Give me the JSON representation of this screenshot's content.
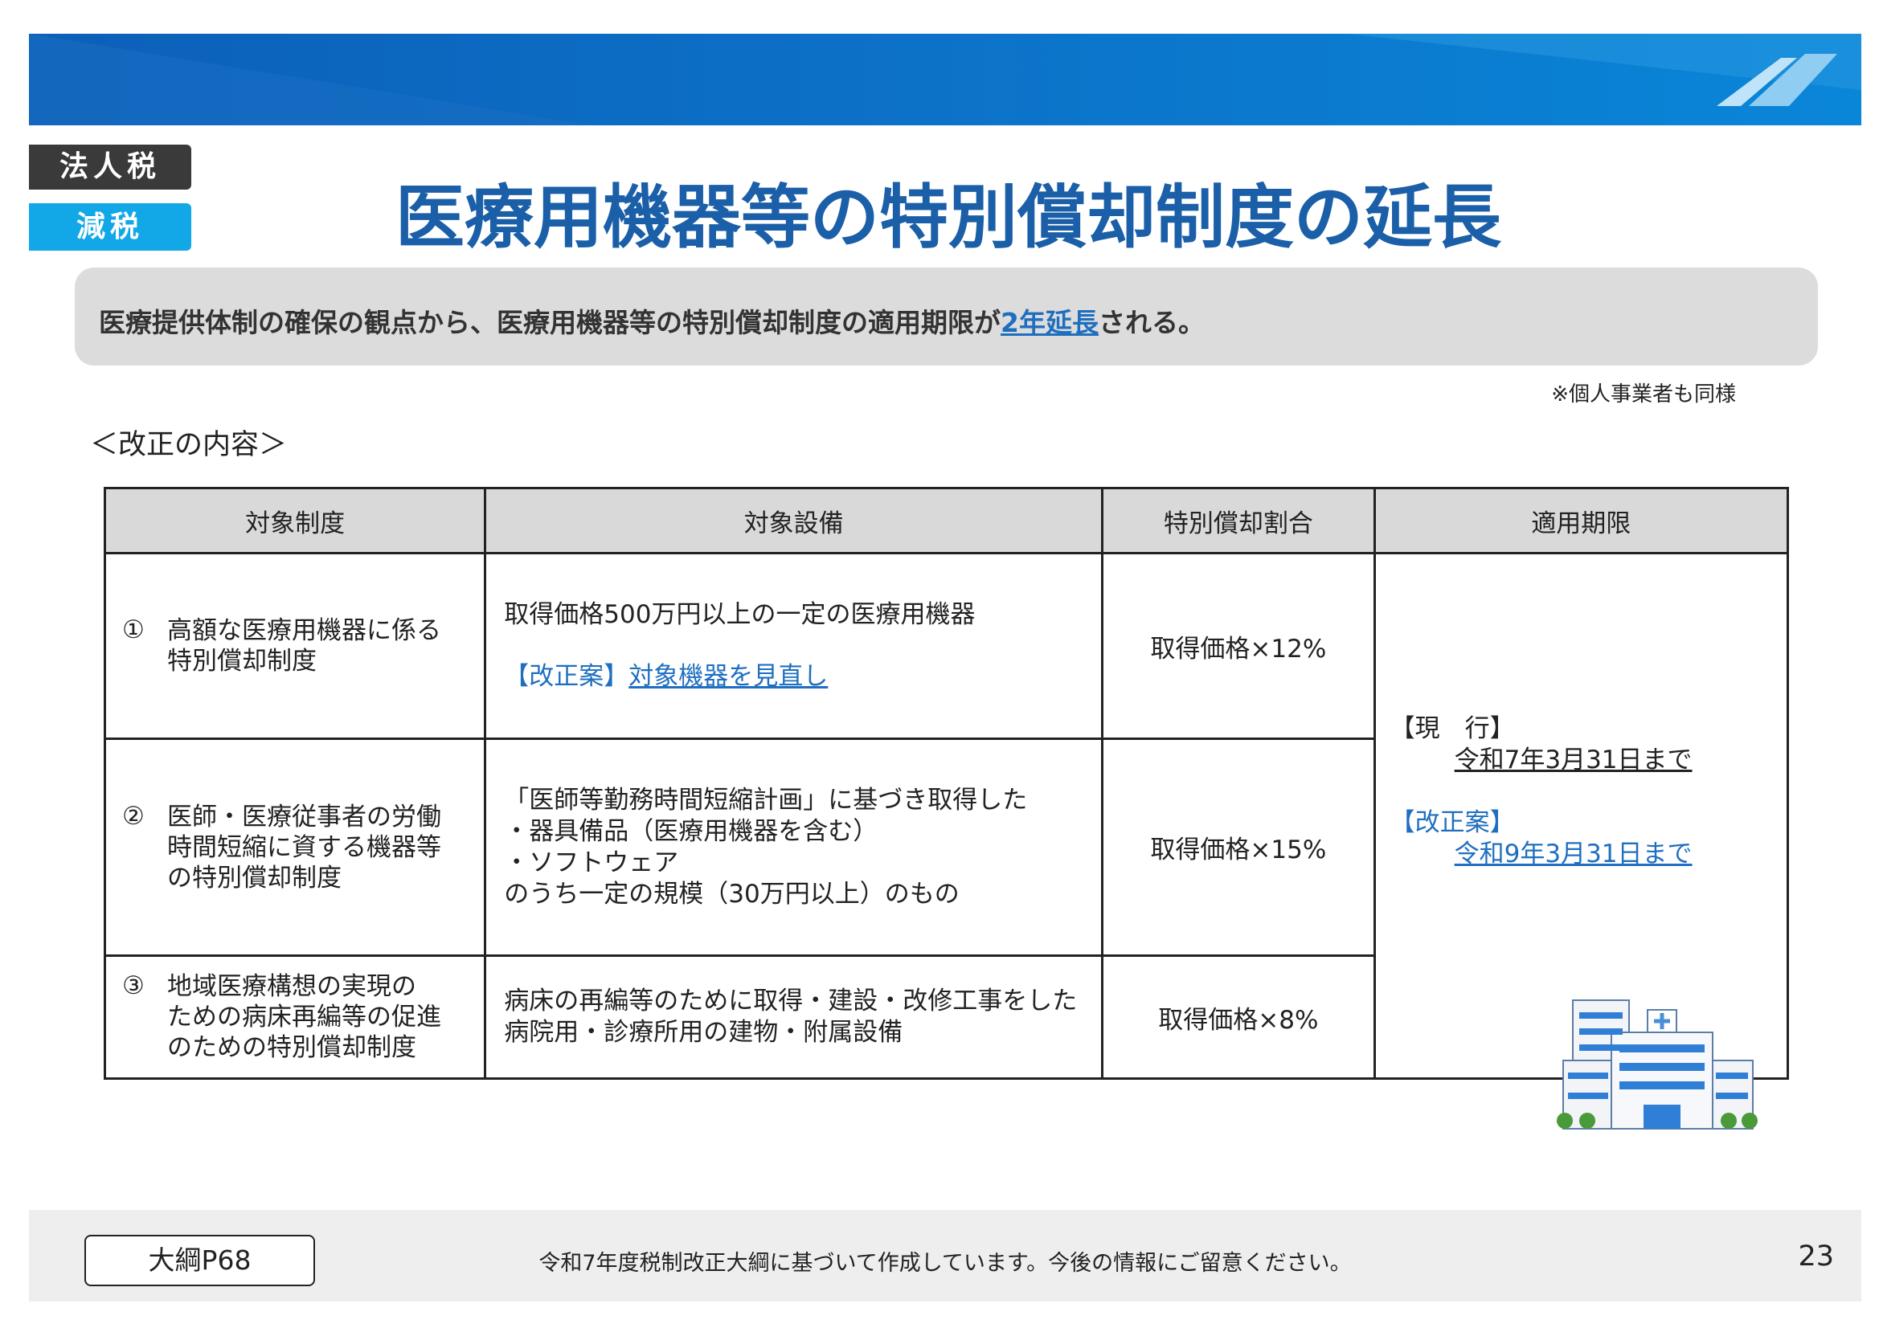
{
  "header": {
    "tags": [
      "法人税",
      "減税"
    ],
    "title": "医療用機器等の特別償却制度の延長"
  },
  "summary": {
    "before": "医療提供体制の確保の観点から、医療用機器等の特別償却制度の適用期限が",
    "highlight": "2年延長",
    "after": "される。"
  },
  "note": "※個人事業者も同様",
  "section": "＜改正の内容＞",
  "table": {
    "headers": [
      "対象制度",
      "対象設備",
      "特別償却割合",
      "適用期限"
    ],
    "rows": [
      {
        "num": "①",
        "system": [
          "高額な医療用機器に係る",
          "特別償却制度"
        ],
        "equipment": [
          "取得価格500万円以上の一定の医療用機器"
        ],
        "revision_tag": "【改正案】",
        "revision": "対象機器を見直し",
        "rate": "取得価格×12%"
      },
      {
        "num": "②",
        "system": [
          "医師・医療従事者の労働",
          "時間短縮に資する機器等",
          "の特別償却制度"
        ],
        "equipment": [
          "「医師等勤務時間短縮計画」に基づき取得した",
          "・器具備品（医療用機器を含む）",
          "・ソフトウェア",
          "のうち一定の規模（30万円以上）のもの"
        ],
        "rate": "取得価格×15%"
      },
      {
        "num": "③",
        "system": [
          "地域医療構想の実現の",
          "ための病床再編等の促進",
          "のための特別償却制度"
        ],
        "equipment": [
          "病床の再編等のために取得・建設・改修工事をした",
          "病院用・診療所用の建物・附属設備"
        ],
        "rate": "取得価格×8%"
      }
    ],
    "period": {
      "current_label": "【現　行】",
      "current": "令和7年3月31日まで",
      "proposed_label": "【改正案】",
      "proposed": "令和9年3月31日まで"
    }
  },
  "footer": {
    "reference": "大綱P68",
    "note": "令和7年度税制改正大綱に基づいて作成しています。今後の情報にご留意ください。",
    "page": "23"
  }
}
